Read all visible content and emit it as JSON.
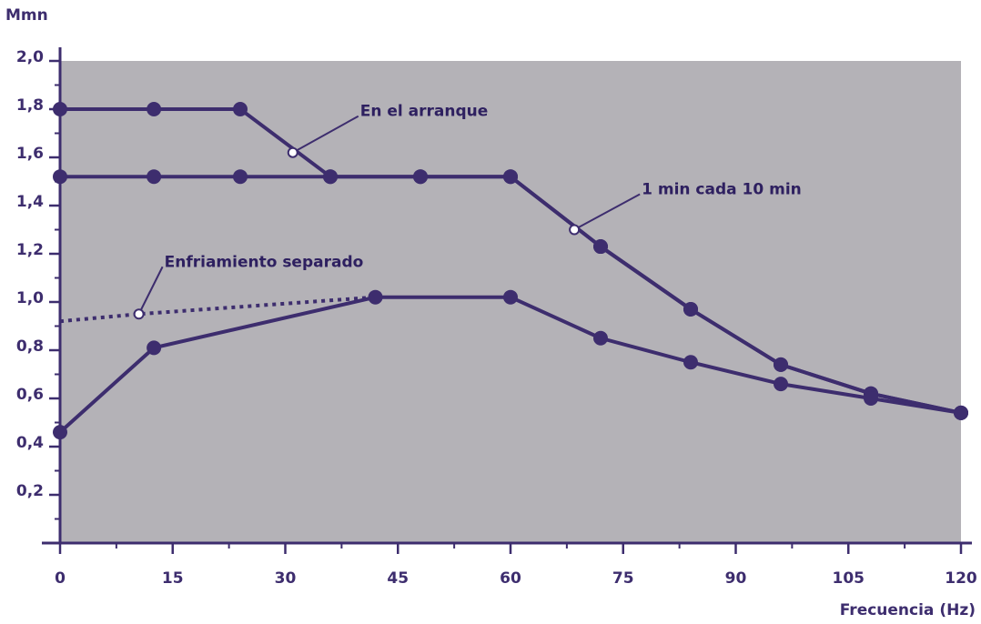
{
  "chart_data": {
    "type": "line",
    "ylabel": "Mmn",
    "xlabel": "Frecuencia (Hz)",
    "xlim": [
      0,
      120
    ],
    "ylim": [
      0,
      2.0
    ],
    "xticks": [
      "0",
      "15",
      "30",
      "45",
      "60",
      "75",
      "90",
      "105",
      "120"
    ],
    "yticks": [
      "0,2",
      "0,4",
      "0,6",
      "0,8",
      "1,0",
      "1,2",
      "1,4",
      "1,6",
      "1,8",
      "2,0"
    ],
    "grid": false,
    "colors": {
      "plot_bg": "#b4b2b7",
      "line": "#3d2d6e",
      "text": "#3d2d6e"
    },
    "series": [
      {
        "points": [
          [
            0,
            1.8
          ],
          [
            12.5,
            1.8
          ],
          [
            24,
            1.8
          ],
          [
            36,
            1.52
          ],
          [
            48,
            1.52
          ],
          [
            60,
            1.52
          ],
          [
            72,
            1.23
          ],
          [
            84,
            0.97
          ],
          [
            96,
            0.74
          ],
          [
            108,
            0.62
          ],
          [
            120,
            0.54
          ]
        ]
      },
      {
        "points": [
          [
            0,
            1.52
          ],
          [
            12.5,
            1.52
          ],
          [
            24,
            1.52
          ],
          [
            36,
            1.52
          ],
          [
            48,
            1.52
          ],
          [
            60,
            1.52
          ],
          [
            72,
            1.23
          ],
          [
            84,
            0.97
          ],
          [
            96,
            0.74
          ],
          [
            108,
            0.62
          ],
          [
            120,
            0.54
          ]
        ]
      },
      {
        "points": [
          [
            0,
            0.46
          ],
          [
            12.5,
            0.81
          ],
          [
            42,
            1.02
          ],
          [
            60,
            1.02
          ],
          [
            72,
            0.85
          ],
          [
            84,
            0.75
          ],
          [
            96,
            0.66
          ],
          [
            108,
            0.6
          ],
          [
            120,
            0.54
          ]
        ]
      },
      {
        "dashed": true,
        "markers": false,
        "points": [
          [
            0,
            0.92
          ],
          [
            10.5,
            0.95
          ],
          [
            42,
            1.02
          ]
        ]
      }
    ],
    "annotations": [
      {
        "text": "En el arranque",
        "point": [
          31,
          1.62
        ]
      },
      {
        "text": "1 min cada 10 min",
        "point": [
          68.5,
          1.3
        ]
      },
      {
        "text": "Enfriamiento separado",
        "point": [
          10.5,
          0.95
        ]
      }
    ]
  }
}
